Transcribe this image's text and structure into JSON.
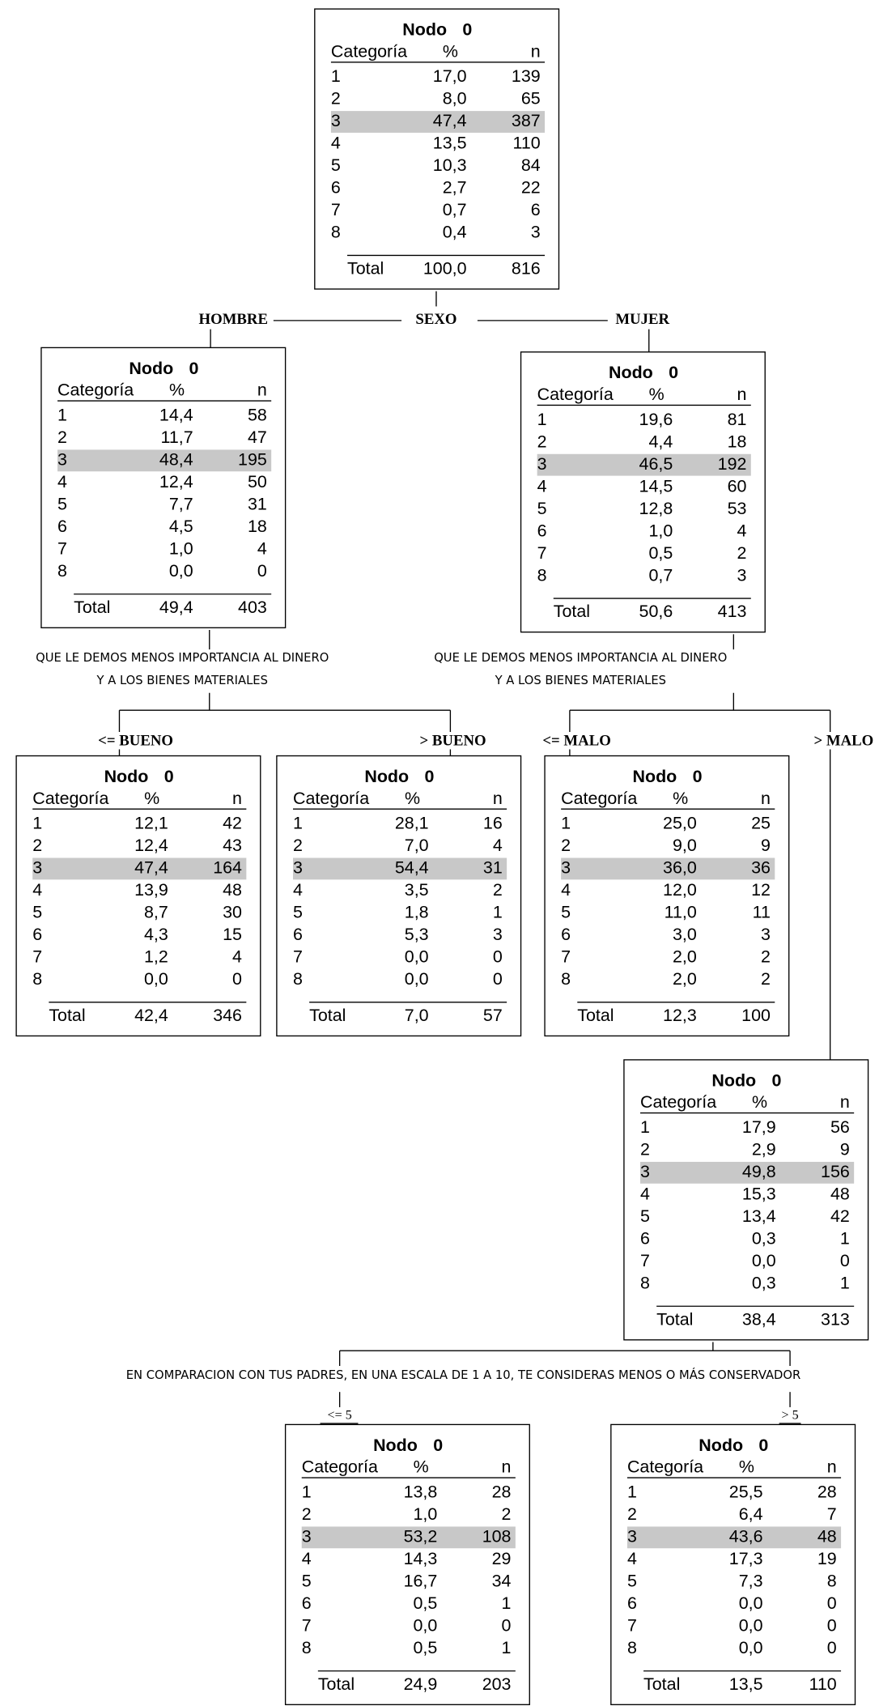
{
  "nodes": [
    {
      "title": "Nodo 0",
      "header": [
        "Categoría",
        "%",
        "n"
      ],
      "rows": [
        [
          "1",
          "17,0",
          "139"
        ],
        [
          "2",
          "8,0",
          "65"
        ],
        [
          "3",
          "47,4",
          "387"
        ],
        [
          "4",
          "13,5",
          "110"
        ],
        [
          "5",
          "10,3",
          "84"
        ],
        [
          "6",
          "2,7",
          "22"
        ],
        [
          "7",
          "0,7",
          "6"
        ],
        [
          "8",
          "0,4",
          "3"
        ]
      ],
      "total": [
        "Total",
        "100,0",
        "816"
      ]
    },
    {
      "title": "Nodo 0",
      "header": [
        "Categoría",
        "%",
        "n"
      ],
      "rows": [
        [
          "1",
          "14,4",
          "58"
        ],
        [
          "2",
          "11,7",
          "47"
        ],
        [
          "3",
          "48,4",
          "195"
        ],
        [
          "4",
          "12,4",
          "50"
        ],
        [
          "5",
          "7,7",
          "31"
        ],
        [
          "6",
          "4,5",
          "18"
        ],
        [
          "7",
          "1,0",
          "4"
        ],
        [
          "8",
          "0,0",
          "0"
        ]
      ],
      "total": [
        "Total",
        "49,4",
        "403"
      ]
    },
    {
      "title": "Nodo 0",
      "header": [
        "Categoría",
        "%",
        "n"
      ],
      "rows": [
        [
          "1",
          "19,6",
          "81"
        ],
        [
          "2",
          "4,4",
          "18"
        ],
        [
          "3",
          "46,5",
          "192"
        ],
        [
          "4",
          "14,5",
          "60"
        ],
        [
          "5",
          "12,8",
          "53"
        ],
        [
          "6",
          "1,0",
          "4"
        ],
        [
          "7",
          "0,5",
          "2"
        ],
        [
          "8",
          "0,7",
          "3"
        ]
      ],
      "total": [
        "Total",
        "50,6",
        "413"
      ]
    },
    {
      "title": "Nodo 0",
      "header": [
        "Categoría",
        "%",
        "n"
      ],
      "rows": [
        [
          "1",
          "12,1",
          "42"
        ],
        [
          "2",
          "12,4",
          "43"
        ],
        [
          "3",
          "47,4",
          "164"
        ],
        [
          "4",
          "13,9",
          "48"
        ],
        [
          "5",
          "8,7",
          "30"
        ],
        [
          "6",
          "4,3",
          "15"
        ],
        [
          "7",
          "1,2",
          "4"
        ],
        [
          "8",
          "0,0",
          "0"
        ]
      ],
      "total": [
        "Total",
        "42,4",
        "346"
      ]
    },
    {
      "title": "Nodo 0",
      "header": [
        "Categoría",
        "%",
        "n"
      ],
      "rows": [
        [
          "1",
          "28,1",
          "16"
        ],
        [
          "2",
          "7,0",
          "4"
        ],
        [
          "3",
          "54,4",
          "31"
        ],
        [
          "4",
          "3,5",
          "2"
        ],
        [
          "5",
          "1,8",
          "1"
        ],
        [
          "6",
          "5,3",
          "3"
        ],
        [
          "7",
          "0,0",
          "0"
        ],
        [
          "8",
          "0,0",
          "0"
        ]
      ],
      "total": [
        "Total",
        "7,0",
        "57"
      ]
    },
    {
      "title": "Nodo 0",
      "header": [
        "Categoría",
        "%",
        "n"
      ],
      "rows": [
        [
          "1",
          "25,0",
          "25"
        ],
        [
          "2",
          "9,0",
          "9"
        ],
        [
          "3",
          "36,0",
          "36"
        ],
        [
          "4",
          "12,0",
          "12"
        ],
        [
          "5",
          "11,0",
          "11"
        ],
        [
          "6",
          "3,0",
          "3"
        ],
        [
          "7",
          "2,0",
          "2"
        ],
        [
          "8",
          "2,0",
          "2"
        ]
      ],
      "total": [
        "Total",
        "12,3",
        "100"
      ]
    },
    {
      "title": "Nodo 0",
      "header": [
        "Categoría",
        "%",
        "n"
      ],
      "rows": [
        [
          "1",
          "17,9",
          "56"
        ],
        [
          "2",
          "2,9",
          "9"
        ],
        [
          "3",
          "49,8",
          "156"
        ],
        [
          "4",
          "15,3",
          "48"
        ],
        [
          "5",
          "13,4",
          "42"
        ],
        [
          "6",
          "0,3",
          "1"
        ],
        [
          "7",
          "0,0",
          "0"
        ],
        [
          "8",
          "0,3",
          "1"
        ]
      ],
      "total": [
        "Total",
        "38,4",
        "313"
      ]
    },
    {
      "title": "Nodo 0",
      "header": [
        "Categoría",
        "%",
        "n"
      ],
      "rows": [
        [
          "1",
          "13,8",
          "28"
        ],
        [
          "2",
          "1,0",
          "2"
        ],
        [
          "3",
          "53,2",
          "108"
        ],
        [
          "4",
          "14,3",
          "29"
        ],
        [
          "5",
          "16,7",
          "34"
        ],
        [
          "6",
          "0,5",
          "1"
        ],
        [
          "7",
          "0,0",
          "0"
        ],
        [
          "8",
          "0,5",
          "1"
        ]
      ],
      "total": [
        "Total",
        "24,9",
        "203"
      ]
    },
    {
      "title": "Nodo 0",
      "header": [
        "Categoría",
        "%",
        "n"
      ],
      "rows": [
        [
          "1",
          "25,5",
          "28"
        ],
        [
          "2",
          "6,4",
          "7"
        ],
        [
          "3",
          "43,6",
          "48"
        ],
        [
          "4",
          "17,3",
          "19"
        ],
        [
          "5",
          "7,3",
          "8"
        ],
        [
          "6",
          "0,0",
          "0"
        ],
        [
          "7",
          "0,0",
          "0"
        ],
        [
          "8",
          "0,0",
          "0"
        ]
      ],
      "total": [
        "Total",
        "13,5",
        "110"
      ]
    }
  ],
  "splits": [
    {
      "variable": [
        "SEXO"
      ],
      "branches": [
        "HOMBRE",
        "MUJER"
      ]
    },
    {
      "variable": [
        "QUE LE DEMOS MENOS IMPORTANCIA AL DINERO",
        "Y A LOS BIENES MATERIALES"
      ],
      "branches": [
        "<= BUENO",
        "> BUENO"
      ]
    },
    {
      "variable": [
        "QUE LE DEMOS MENOS IMPORTANCIA AL DINERO",
        "Y A LOS BIENES MATERIALES"
      ],
      "branches": [
        "<= MALO",
        "> MALO"
      ]
    },
    {
      "variable": [
        "EN COMPARACION CON TUS PADRES, EN UNA ESCALA DE 1 A 10,  TE CONSIDERAS MENOS O MÁS CONSERVADOR"
      ],
      "branches": [
        "<= 5",
        "> 5"
      ]
    }
  ]
}
